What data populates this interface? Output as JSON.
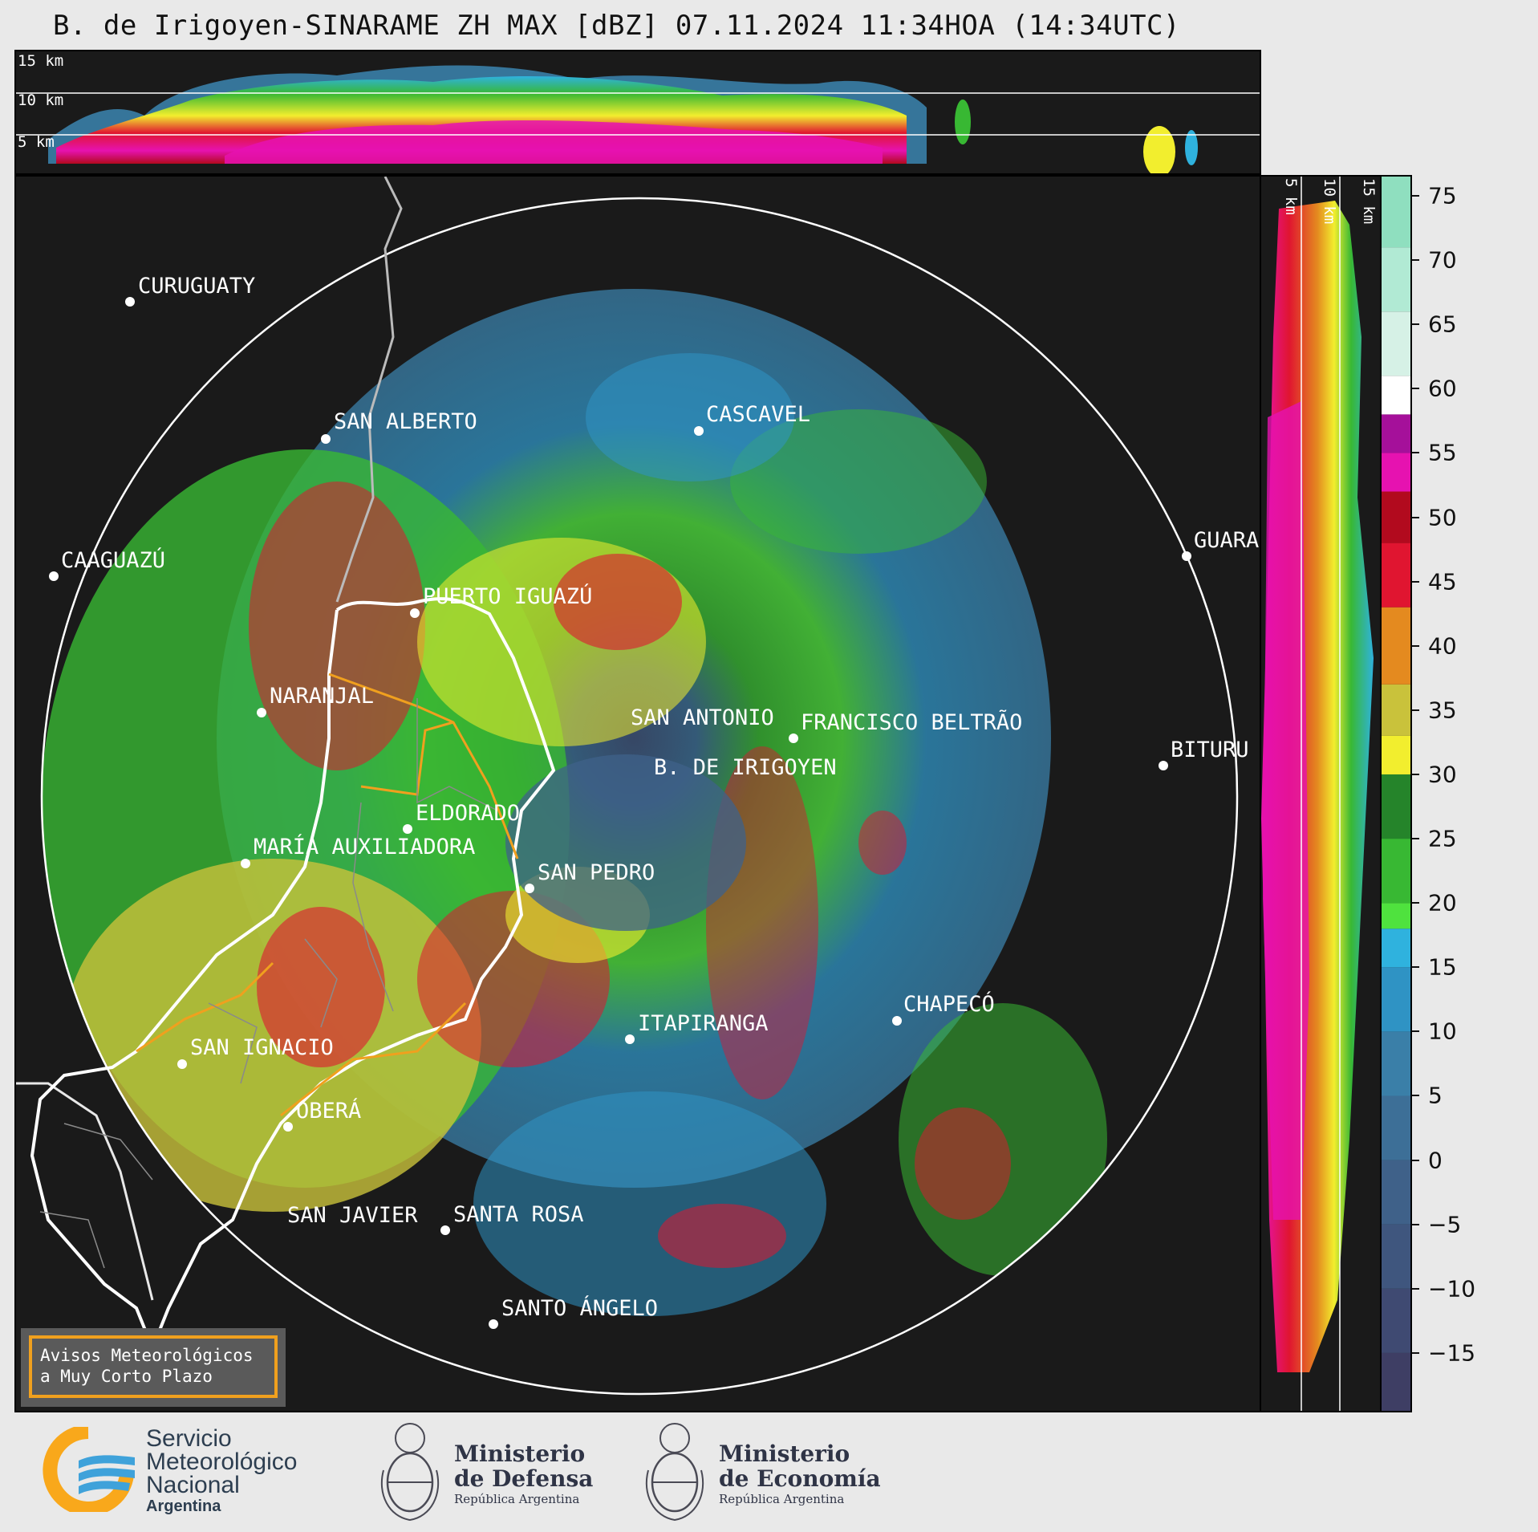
{
  "title": "B. de Irigoyen-SINARAME ZH MAX [dBZ] 07.11.2024 11:34HOA (14:34UTC)",
  "top_profile": {
    "labels": [
      "15 km",
      "10 km",
      "5 km"
    ]
  },
  "side_profile": {
    "labels": [
      "5 km",
      "10 km",
      "15 km"
    ]
  },
  "colorbar": {
    "unit": "dBZ",
    "ticks": [
      "75",
      "70",
      "65",
      "60",
      "55",
      "50",
      "45",
      "40",
      "35",
      "30",
      "25",
      "20",
      "15",
      "10",
      "5",
      "0",
      "−5",
      "−10",
      "−15"
    ],
    "tick_values": [
      75,
      70,
      65,
      60,
      55,
      50,
      45,
      40,
      35,
      30,
      25,
      20,
      15,
      10,
      5,
      0,
      -5,
      -10,
      -15
    ],
    "range": [
      -19.5,
      76.5
    ],
    "bands": [
      {
        "from": -19.5,
        "to": -15,
        "color": "#3e3e64"
      },
      {
        "from": -15,
        "to": -10,
        "color": "#3f4a72"
      },
      {
        "from": -10,
        "to": -5,
        "color": "#3f567e"
      },
      {
        "from": -5,
        "to": 0,
        "color": "#3f6189"
      },
      {
        "from": 0,
        "to": 5,
        "color": "#3d6f97"
      },
      {
        "from": 5,
        "to": 10,
        "color": "#3a7fa8"
      },
      {
        "from": 10,
        "to": 15,
        "color": "#2f93c4"
      },
      {
        "from": 15,
        "to": 18,
        "color": "#2fb2de"
      },
      {
        "from": 18,
        "to": 20,
        "color": "#4fe23e"
      },
      {
        "from": 20,
        "to": 25,
        "color": "#38b833"
      },
      {
        "from": 25,
        "to": 30,
        "color": "#25842a"
      },
      {
        "from": 30,
        "to": 33,
        "color": "#f2ee2e"
      },
      {
        "from": 33,
        "to": 37,
        "color": "#c9c23b"
      },
      {
        "from": 37,
        "to": 43,
        "color": "#e48a1f"
      },
      {
        "from": 43,
        "to": 48,
        "color": "#e01530"
      },
      {
        "from": 48,
        "to": 52,
        "color": "#b20a1e"
      },
      {
        "from": 52,
        "to": 55,
        "color": "#e612b0"
      },
      {
        "from": 55,
        "to": 58,
        "color": "#a5109a"
      },
      {
        "from": 58,
        "to": 61,
        "color": "#ffffff"
      },
      {
        "from": 61,
        "to": 66,
        "color": "#d6f1e6"
      },
      {
        "from": 66,
        "to": 71,
        "color": "#b1ead4"
      },
      {
        "from": 71,
        "to": 76.5,
        "color": "#8fdfbf"
      }
    ]
  },
  "map": {
    "radar_site": "B. DE IRIGOYEN",
    "places": [
      {
        "name": "CURUGUATY"
      },
      {
        "name": "SAN ALBERTO"
      },
      {
        "name": "CASCAVEL"
      },
      {
        "name": "CAAGUAZÚ"
      },
      {
        "name": "GUARA"
      },
      {
        "name": "PUERTO IGUAZÚ"
      },
      {
        "name": "NARANJAL"
      },
      {
        "name": "SAN ANTONIO"
      },
      {
        "name": "FRANCISCO BELTRÃO"
      },
      {
        "name": "BITURU"
      },
      {
        "name": "B. DE IRIGOYEN"
      },
      {
        "name": "ELDORADO"
      },
      {
        "name": "MARÍA AUXILIADORA"
      },
      {
        "name": "SAN PEDRO"
      },
      {
        "name": "ITAPIRANGA"
      },
      {
        "name": "CHAPECÓ"
      },
      {
        "name": "SAN IGNACIO"
      },
      {
        "name": "OBERÁ"
      },
      {
        "name": "SAN JAVIER"
      },
      {
        "name": "SANTA ROSA"
      },
      {
        "name": "SANTO ÁNGELO"
      }
    ],
    "warning_box": [
      "Avisos Meteorológicos",
      "a Muy Corto Plazo"
    ]
  },
  "footer": {
    "smn": [
      "Servicio",
      "Meteorológico",
      "Nacional",
      "Argentina"
    ],
    "defensa": [
      "Ministerio",
      "de Defensa",
      "República Argentina"
    ],
    "economia": [
      "Ministerio",
      "de Economía",
      "República Argentina"
    ]
  }
}
